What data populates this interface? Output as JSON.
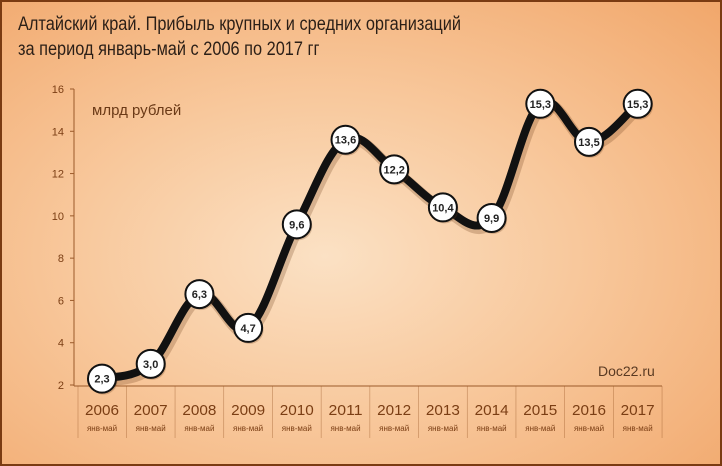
{
  "title": {
    "line1": "Алтайский край. Прибыль крупных и средних организаций",
    "line2": "за период январь-май с 2006 по 2017 гг"
  },
  "source": "Doc22.ru",
  "colors": {
    "line": "#111111",
    "marker_fill": "#ffffff",
    "axis": "#9b5a2a",
    "background": "#f8c89c"
  },
  "chart_data": {
    "type": "line",
    "title": "Алтайский край. Прибыль крупных и средних организаций за период январь-май с 2006 по 2017 гг",
    "ylabel": "млрд рублей",
    "xlabel": "",
    "categories": [
      "2006",
      "2007",
      "2008",
      "2009",
      "2010",
      "2011",
      "2012",
      "2013",
      "2014",
      "2015",
      "2016",
      "2017"
    ],
    "period_label": "янв-май",
    "series": [
      {
        "values": [
          2.3,
          3.0,
          6.3,
          4.7,
          9.6,
          13.6,
          12.2,
          10.4,
          9.9,
          15.3,
          13.5,
          15.3
        ],
        "labels": [
          "2,3",
          "3,0",
          "6,3",
          "4,7",
          "9,6",
          "13,6",
          "12,2",
          "10,4",
          "9,9",
          "15,3",
          "13,5",
          "15,3"
        ]
      }
    ],
    "ylim": [
      2,
      16
    ],
    "yticks": [
      2,
      4,
      6,
      8,
      10,
      12,
      14,
      16
    ],
    "grid": false,
    "legend": "none"
  }
}
